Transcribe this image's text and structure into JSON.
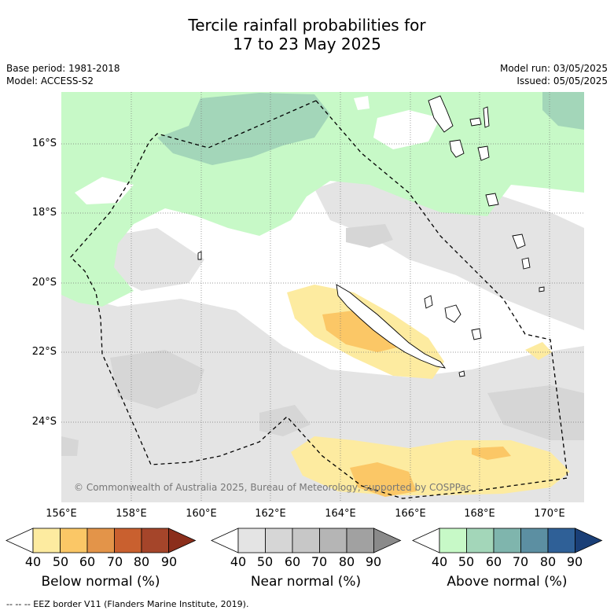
{
  "title": {
    "line1": "Tercile rainfall probabilities for",
    "line2": "17 to 23 May 2025"
  },
  "meta_left": {
    "base_period": "Base period: 1981-2018",
    "model": "Model: ACCESS-S2"
  },
  "meta_right": {
    "model_run": "Model run: 03/05/2025",
    "issued": "Issued: 05/05/2025"
  },
  "map": {
    "lat_labels": [
      "16°S",
      "18°S",
      "20°S",
      "22°S",
      "24°S"
    ],
    "lon_labels": [
      "156°E",
      "158°E",
      "160°E",
      "162°E",
      "164°E",
      "166°E",
      "168°E",
      "170°E"
    ],
    "copyright": "© Commonwealth of Australia 2025, Bureau of Meteorology, supported by COSPPac"
  },
  "colorbars": [
    {
      "name": "Below normal (%)",
      "ticks": [
        "40",
        "50",
        "60",
        "70",
        "80",
        "90"
      ],
      "colors": [
        "#ffffff",
        "#fdeba0",
        "#fbc766",
        "#e39449",
        "#c9602f",
        "#a5452a",
        "#8b2e1b"
      ]
    },
    {
      "name": "Near normal (%)",
      "ticks": [
        "40",
        "50",
        "60",
        "70",
        "80",
        "90"
      ],
      "colors": [
        "#ffffff",
        "#e4e4e4",
        "#d6d6d6",
        "#c7c7c7",
        "#b5b5b5",
        "#a1a1a1",
        "#8a8a8a"
      ]
    },
    {
      "name": "Above normal (%)",
      "ticks": [
        "40",
        "50",
        "60",
        "70",
        "80",
        "90"
      ],
      "colors": [
        "#ffffff",
        "#c7f9c7",
        "#a3d6b9",
        "#7fb5ad",
        "#5c8fa2",
        "#2f6097",
        "#1a3f77"
      ]
    }
  ],
  "footer": {
    "eez_legend": "--  --  -- EEZ border V11 (Flanders Marine Institute, 2019)."
  },
  "palette": {
    "below_50": "#fdeba0",
    "below_60": "#fbc766",
    "near_50": "#e4e4e4",
    "near_60": "#d6d6d6",
    "above_50": "#c7f9c7",
    "above_60": "#a3d6b9"
  }
}
